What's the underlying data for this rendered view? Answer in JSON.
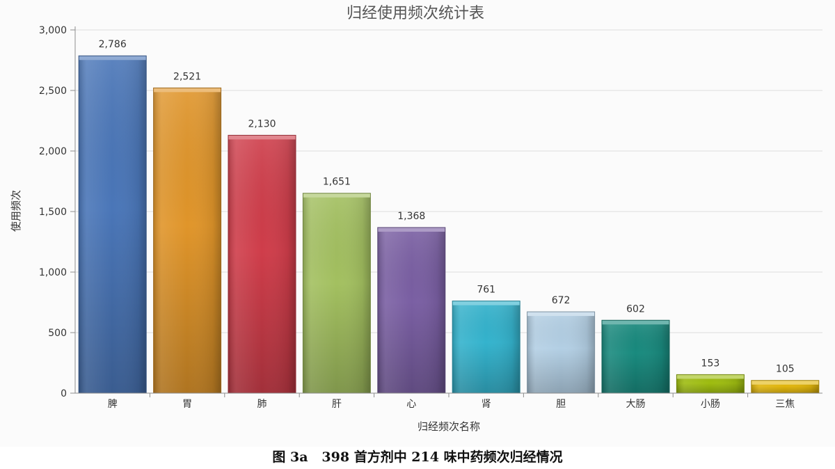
{
  "chart_data": {
    "type": "bar",
    "title": "归经使用频次统计表",
    "xlabel": "归经频次名称",
    "ylabel": "使用频次",
    "categories": [
      "脾",
      "胃",
      "肺",
      "肝",
      "心",
      "肾",
      "胆",
      "大肠",
      "小肠",
      "三焦"
    ],
    "values": [
      2786,
      2521,
      2130,
      1651,
      1368,
      761,
      672,
      602,
      153,
      105
    ],
    "value_labels": [
      "2,786",
      "2,521",
      "2,130",
      "1,651",
      "1,368",
      "761",
      "672",
      "602",
      "153",
      "105"
    ],
    "ylim": [
      0,
      3000
    ],
    "yticks": [
      0,
      500,
      1000,
      1500,
      2000,
      2500,
      3000
    ],
    "ytick_labels": [
      "0",
      "500",
      "1,000",
      "1,500",
      "2,000",
      "2,500",
      "3,000"
    ],
    "grid": true,
    "legend": "none",
    "colors": [
      "#4a76b8",
      "#e0952a",
      "#cf3d4a",
      "#a3c060",
      "#7a5fa3",
      "#34b3cd",
      "#b3cfe4",
      "#198a7e",
      "#9fbd10",
      "#e2b60c"
    ]
  },
  "caption": {
    "figure_label": "图 3a",
    "text": "398 首方剂中 214 味中药频次归经情况"
  }
}
